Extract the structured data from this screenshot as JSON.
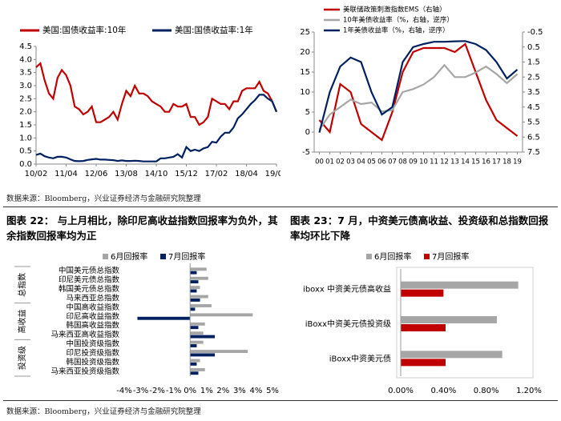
{
  "chart_data": [
    {
      "type": "line",
      "legend": "top",
      "x": [
        "10/02",
        "10/04",
        "10/06",
        "10/08",
        "10/10",
        "10/12",
        "11/02",
        "11/04",
        "11/06",
        "11/08",
        "11/10",
        "11/12",
        "12/02",
        "12/04",
        "12/06",
        "12/08",
        "12/10",
        "12/12",
        "13/02",
        "13/04",
        "13/06",
        "13/08",
        "13/10",
        "13/12",
        "14/02",
        "14/04",
        "14/06",
        "14/08",
        "14/10",
        "14/12",
        "15/02",
        "15/04",
        "15/06",
        "15/08",
        "15/10",
        "15/12",
        "16/02",
        "16/04",
        "16/06",
        "16/08",
        "16/10",
        "16/12",
        "17/02",
        "17/04",
        "17/06",
        "17/08",
        "17/10",
        "17/12",
        "18/02",
        "18/04",
        "18/06",
        "18/08",
        "18/10",
        "18/12",
        "19/02",
        "19/04",
        "19/06"
      ],
      "xticks": [
        "10/02",
        "11/04",
        "12/06",
        "13/08",
        "14/10",
        "15/12",
        "17/02",
        "18/04",
        "19/06"
      ],
      "ylim": [
        0,
        4.5
      ],
      "yticks": [
        {
          "value": 0,
          "label": "0.0"
        },
        0.5,
        {
          "value": 1,
          "label": "1.0"
        },
        1.5,
        {
          "value": 2,
          "label": "2.0"
        },
        2.5,
        {
          "value": 3,
          "label": "3.0"
        },
        3.5,
        {
          "value": 4,
          "label": "4.0"
        },
        4.5
      ],
      "series": [
        {
          "name": "美国:国债收益率:10年",
          "color": "#c00000",
          "values": [
            3.7,
            3.85,
            3.2,
            2.7,
            2.5,
            3.3,
            3.6,
            3.4,
            3.0,
            2.2,
            2.1,
            1.9,
            2.0,
            2.2,
            1.6,
            1.6,
            1.7,
            1.8,
            2.0,
            1.7,
            2.3,
            2.8,
            2.6,
            3.0,
            2.7,
            2.7,
            2.6,
            2.4,
            2.3,
            2.2,
            2.0,
            2.0,
            2.3,
            2.2,
            2.2,
            2.3,
            1.8,
            1.8,
            1.5,
            1.6,
            1.8,
            2.5,
            2.4,
            2.3,
            2.3,
            2.1,
            2.4,
            2.4,
            2.8,
            2.9,
            2.9,
            2.9,
            3.15,
            2.8,
            2.7,
            2.4,
            2.0
          ]
        },
        {
          "name": "美国:国债收益率:1年",
          "color": "#002060",
          "values": [
            0.35,
            0.4,
            0.3,
            0.25,
            0.22,
            0.28,
            0.28,
            0.25,
            0.18,
            0.12,
            0.11,
            0.12,
            0.16,
            0.18,
            0.2,
            0.17,
            0.17,
            0.16,
            0.15,
            0.12,
            0.14,
            0.12,
            0.12,
            0.13,
            0.12,
            0.1,
            0.1,
            0.1,
            0.1,
            0.22,
            0.22,
            0.25,
            0.28,
            0.38,
            0.25,
            0.65,
            0.5,
            0.55,
            0.5,
            0.6,
            0.65,
            0.85,
            0.82,
            1.05,
            1.2,
            1.2,
            1.4,
            1.75,
            1.9,
            2.1,
            2.3,
            2.45,
            2.65,
            2.65,
            2.5,
            2.4,
            2.0
          ]
        }
      ]
    },
    {
      "type": "line",
      "legend": "upper left",
      "x": [
        "00",
        "01",
        "02",
        "03",
        "04",
        "05",
        "06",
        "07",
        "08",
        "09",
        "10",
        "11",
        "12",
        "13",
        "14",
        "15",
        "16",
        "17",
        "18",
        "19"
      ],
      "ylim": [
        -5,
        25
      ],
      "yticks": [
        -5,
        0,
        5,
        10,
        15,
        20,
        25
      ],
      "y2lim": [
        7.5,
        -0.5
      ],
      "y2ticks": [
        -0.5,
        0.5,
        1.5,
        2.5,
        3.5,
        4.5,
        5.5,
        6.5,
        7.5
      ],
      "series": [
        {
          "name": "美联储政策刺激指数EMS（右轴）",
          "color": "#c00000",
          "values": [
            3,
            0,
            12,
            10,
            2,
            0,
            -2,
            5,
            15,
            20,
            21,
            21,
            21,
            20,
            22,
            15,
            8,
            3,
            1,
            -1
          ]
        },
        {
          "name": "10年美债收益率（%，右轴，逆序）",
          "color": "#a6a6a6",
          "axis": "y2",
          "values": [
            6.0,
            5.0,
            4.5,
            4.0,
            4.3,
            4.2,
            4.8,
            4.7,
            3.5,
            3.3,
            3.0,
            2.5,
            1.7,
            2.5,
            2.5,
            2.2,
            1.8,
            2.3,
            2.9,
            2.3
          ]
        },
        {
          "name": "1年美债收益率（%，右轴，逆序）",
          "color": "#002060",
          "axis": "y2",
          "values": [
            6.2,
            3.5,
            1.8,
            1.2,
            1.5,
            3.5,
            5.0,
            4.5,
            1.5,
            0.5,
            0.3,
            0.15,
            0.15,
            0.12,
            0.1,
            0.3,
            0.7,
            1.5,
            2.6,
            2.0
          ]
        }
      ]
    },
    {
      "type": "hbar",
      "legend": "top",
      "categories": [
        "中国美元债总指数",
        "印尼美元债总指数",
        "韩国美元债总指数",
        "马来西亚总指数",
        "中国高收益指数",
        "印尼高收益指数",
        "韩国高收益指数",
        "马来西亚高收益指数",
        "中国投资级指数",
        "印尼投资级指数",
        "韩国投资级指数",
        "马来西亚投资级指数"
      ],
      "groups": [
        "总指数",
        "高收益",
        "投资级"
      ],
      "xlim": [
        -4,
        5
      ],
      "xticks": [
        {
          "value": -4,
          "label": "-4%"
        },
        {
          "value": -3,
          "label": "-3%"
        },
        {
          "value": -2,
          "label": "-2%"
        },
        {
          "value": -1,
          "label": "-1%"
        },
        {
          "value": 0,
          "label": "0%"
        },
        {
          "value": 1,
          "label": "1%"
        },
        {
          "value": 2,
          "label": "2%"
        },
        {
          "value": 3,
          "label": "3%"
        },
        {
          "value": 4,
          "label": "4%"
        },
        {
          "value": 5,
          "label": "5%"
        }
      ],
      "series": [
        {
          "name": "6月回报率",
          "color": "#a6a6a6",
          "values": [
            1.0,
            1.1,
            0.6,
            1.1,
            1.3,
            3.8,
            0.9,
            0.8,
            0.8,
            3.5,
            0.6,
            0.9
          ]
        },
        {
          "name": "7月回报率",
          "color": "#002060",
          "values": [
            0.4,
            0.5,
            0.4,
            0.6,
            0.3,
            -3.2,
            0.5,
            1.5,
            0.4,
            1.5,
            0.4,
            0.5
          ]
        }
      ]
    },
    {
      "type": "hbar",
      "legend": "top",
      "box": true,
      "categories": [
        "iboxx 中资美元债高收益",
        "iBoxx中资美元债投资级",
        "iBoxx中资美元债"
      ],
      "xlim": [
        0,
        1.2
      ],
      "xticks": [
        {
          "value": 0,
          "label": "0.00%"
        },
        {
          "value": 0.4,
          "label": "0.40%"
        },
        {
          "value": 0.8,
          "label": "0.80%"
        },
        {
          "value": 1.2,
          "label": "1.20%"
        }
      ],
      "series": [
        {
          "name": "6月回报率",
          "color": "#a6a6a6",
          "values": [
            1.1,
            0.9,
            0.95
          ]
        },
        {
          "name": "7月回报率",
          "color": "#c00000",
          "values": [
            0.4,
            0.42,
            0.42
          ]
        }
      ]
    }
  ],
  "sources": [
    "数据来源：Bloomberg，兴业证券经济与金融研究院整理",
    "数据来源：Bloomberg，兴业证券经济与金融研究院整理"
  ],
  "figure_titles": [
    "图表 22： 与上月相比，除印尼高收益指数回报率为负外，其余指数回报率均为正",
    "图表 23：7 月，中资美元债高收益、投资级和总指数回报率均环比下降"
  ]
}
